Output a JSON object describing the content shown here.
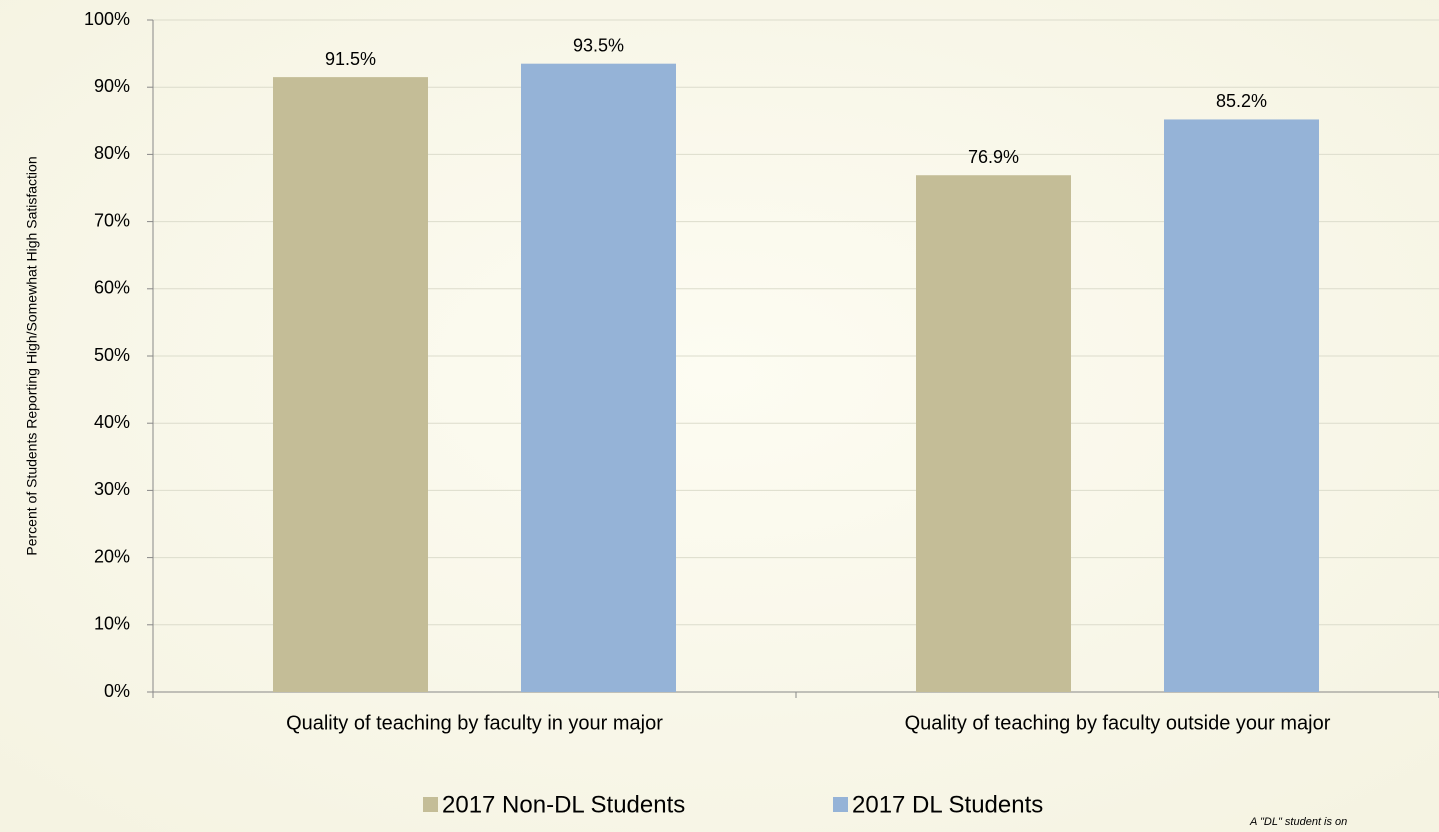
{
  "chart_data": {
    "type": "bar",
    "categories": [
      "Quality of teaching by faculty in your major",
      "Quality of teaching by faculty outside your major"
    ],
    "series": [
      {
        "name": "2017 Non-DL Students",
        "color": "#c4bd97",
        "values": [
          91.5,
          76.9
        ],
        "value_labels": [
          "91.5%",
          "76.9%"
        ]
      },
      {
        "name": "2017 DL Students",
        "color": "#95b3d7",
        "values": [
          93.5,
          85.2
        ],
        "value_labels": [
          "93.5%",
          "85.2%"
        ]
      }
    ],
    "y_axis_label": "Percent of Students Reporting High/Somewhat High Satisfaction",
    "ylim": [
      0,
      100
    ],
    "yticks": [
      {
        "value": 0,
        "label": "0%"
      },
      {
        "value": 10,
        "label": "10%"
      },
      {
        "value": 20,
        "label": "20%"
      },
      {
        "value": 30,
        "label": "30%"
      },
      {
        "value": 40,
        "label": "40%"
      },
      {
        "value": 50,
        "label": "50%"
      },
      {
        "value": 60,
        "label": "60%"
      },
      {
        "value": 70,
        "label": "70%"
      },
      {
        "value": 80,
        "label": "80%"
      },
      {
        "value": 90,
        "label": "90%"
      },
      {
        "value": 100,
        "label": "100%"
      }
    ],
    "grid": true,
    "legend": "bottom",
    "footnote": "A \"DL\" student is on"
  }
}
